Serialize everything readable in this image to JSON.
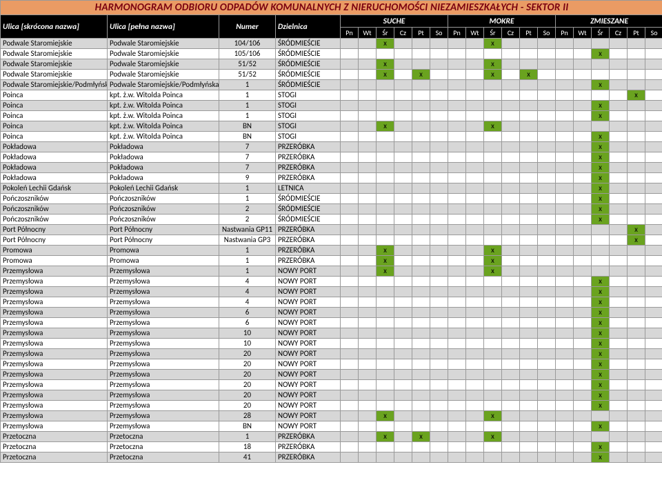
{
  "title": "HARMONOGRAM ODBIORU ODPADÓW KOMUNALNYCH Z NIERUCHOMOŚCI NIEZAMIESZKAŁYCH - SEKTOR II",
  "cols": {
    "street_short": "Ulica [skrócona nazwa]",
    "street_full": "Ulica [pełna nazwa]",
    "number": "Numer",
    "district": "Dzielnica",
    "groups": [
      "SUCHE",
      "MOKRE",
      "ZMIESZANE"
    ],
    "days": [
      "Pn",
      "Wt",
      "Śr",
      "Cz",
      "Pt",
      "So"
    ]
  },
  "colors": {
    "title_bg": "#ea9b64",
    "title_fg": "#7a0010",
    "hdr_bg": "#000000",
    "hdr_fg": "#ffffff",
    "row_alt_bg": "#d7d7d7",
    "row_bg": "#ffffff",
    "mark_bg": "#6aa31f",
    "border": "#999999"
  },
  "rows": [
    {
      "s": "Podwale Staromiejskie",
      "f": "Podwale Staromiejskie",
      "n": "104/106",
      "d": "ŚRÓDMIEŚCIE",
      "m": {
        "s": [
          2
        ],
        "m": [
          2
        ],
        "z": []
      }
    },
    {
      "s": "Podwale Staromiejskie",
      "f": "Podwale Staromiejskie",
      "n": "105/106",
      "d": "ŚRÓDMIEŚCIE",
      "m": {
        "s": [],
        "m": [],
        "z": [
          2
        ]
      }
    },
    {
      "s": "Podwale Staromiejskie",
      "f": "Podwale Staromiejskie",
      "n": "51/52",
      "d": "ŚRÓDMIEŚCIE",
      "m": {
        "s": [
          2
        ],
        "m": [
          2
        ],
        "z": []
      }
    },
    {
      "s": "Podwale Staromiejskie",
      "f": "Podwale Staromiejskie",
      "n": "51/52",
      "d": "ŚRÓDMIEŚCIE",
      "m": {
        "s": [
          2,
          4
        ],
        "m": [
          2,
          4
        ],
        "z": []
      }
    },
    {
      "s": "Podwale Staromiejskie/Podmłyńska",
      "f": "Podwale Staromiejskie/Podmłyńska",
      "n": "1",
      "d": "ŚRÓDMIEŚCIE",
      "m": {
        "s": [],
        "m": [],
        "z": [
          2
        ]
      }
    },
    {
      "s": "Poinca",
      "f": "kpt. ż.w. Witolda Poinca",
      "n": "1",
      "d": "STOGI",
      "m": {
        "s": [],
        "m": [],
        "z": [
          4
        ]
      }
    },
    {
      "s": "Poinca",
      "f": "kpt. ż.w. Witolda Poinca",
      "n": "1",
      "d": "STOGI",
      "m": {
        "s": [],
        "m": [],
        "z": [
          2
        ]
      }
    },
    {
      "s": "Poinca",
      "f": "kpt. ż.w. Witolda Poinca",
      "n": "1",
      "d": "STOGI",
      "m": {
        "s": [],
        "m": [],
        "z": [
          2
        ]
      }
    },
    {
      "s": "Poinca",
      "f": "kpt. ż.w. Witolda Poinca",
      "n": "BN",
      "d": "STOGI",
      "m": {
        "s": [
          2
        ],
        "m": [
          2
        ],
        "z": []
      }
    },
    {
      "s": "Poinca",
      "f": "kpt. ż.w. Witolda Poinca",
      "n": "BN",
      "d": "STOGI",
      "m": {
        "s": [],
        "m": [],
        "z": [
          2
        ]
      }
    },
    {
      "s": "Pokładowa",
      "f": "Pokładowa",
      "n": "7",
      "d": "PRZERÓBKA",
      "m": {
        "s": [],
        "m": [],
        "z": [
          2
        ]
      }
    },
    {
      "s": "Pokładowa",
      "f": "Pokładowa",
      "n": "7",
      "d": "PRZERÓBKA",
      "m": {
        "s": [],
        "m": [],
        "z": [
          2
        ]
      }
    },
    {
      "s": "Pokładowa",
      "f": "Pokładowa",
      "n": "7",
      "d": "PRZERÓBKA",
      "m": {
        "s": [],
        "m": [],
        "z": [
          2
        ]
      }
    },
    {
      "s": "Pokładowa",
      "f": "Pokładowa",
      "n": "9",
      "d": "PRZERÓBKA",
      "m": {
        "s": [],
        "m": [],
        "z": [
          2
        ]
      }
    },
    {
      "s": "Pokoleń Lechii Gdańsk",
      "f": "Pokoleń Lechii Gdańsk",
      "n": "1",
      "d": "LETNICA",
      "m": {
        "s": [],
        "m": [],
        "z": [
          2
        ]
      }
    },
    {
      "s": "Pończoszników",
      "f": "Pończoszników",
      "n": "1",
      "d": "ŚRÓDMIEŚCIE",
      "m": {
        "s": [],
        "m": [],
        "z": [
          2
        ]
      }
    },
    {
      "s": "Pończoszników",
      "f": "Pończoszników",
      "n": "2",
      "d": "ŚRÓDMIEŚCIE",
      "m": {
        "s": [],
        "m": [],
        "z": [
          2
        ]
      }
    },
    {
      "s": "Pończoszników",
      "f": "Pończoszników",
      "n": "2",
      "d": "ŚRÓDMIEŚCIE",
      "m": {
        "s": [],
        "m": [],
        "z": [
          2
        ]
      }
    },
    {
      "s": "Port Północny",
      "f": "Port Północny",
      "n": "Nastwania GP11",
      "d": "PRZERÓBKA",
      "m": {
        "s": [],
        "m": [],
        "z": [
          4
        ]
      }
    },
    {
      "s": "Port Północny",
      "f": "Port Północny",
      "n": "Nastwania GP3",
      "d": "PRZERÓBKA",
      "m": {
        "s": [],
        "m": [],
        "z": [
          4
        ]
      }
    },
    {
      "s": "Promowa",
      "f": "Promowa",
      "n": "1",
      "d": "PRZERÓBKA",
      "m": {
        "s": [
          2
        ],
        "m": [
          2
        ],
        "z": []
      }
    },
    {
      "s": "Promowa",
      "f": "Promowa",
      "n": "1",
      "d": "PRZERÓBKA",
      "m": {
        "s": [
          2
        ],
        "m": [
          2
        ],
        "z": []
      }
    },
    {
      "s": "Przemysłowa",
      "f": "Przemysłowa",
      "n": "1",
      "d": "NOWY PORT",
      "m": {
        "s": [
          2
        ],
        "m": [
          2
        ],
        "z": []
      }
    },
    {
      "s": "Przemysłowa",
      "f": "Przemysłowa",
      "n": "4",
      "d": "NOWY PORT",
      "m": {
        "s": [],
        "m": [],
        "z": [
          2
        ]
      }
    },
    {
      "s": "Przemysłowa",
      "f": "Przemysłowa",
      "n": "4",
      "d": "NOWY PORT",
      "m": {
        "s": [],
        "m": [],
        "z": [
          2
        ]
      }
    },
    {
      "s": "Przemysłowa",
      "f": "Przemysłowa",
      "n": "4",
      "d": "NOWY PORT",
      "m": {
        "s": [],
        "m": [],
        "z": [
          2
        ]
      }
    },
    {
      "s": "Przemysłowa",
      "f": "Przemysłowa",
      "n": "6",
      "d": "NOWY PORT",
      "m": {
        "s": [],
        "m": [],
        "z": [
          2
        ]
      }
    },
    {
      "s": "Przemysłowa",
      "f": "Przemysłowa",
      "n": "6",
      "d": "NOWY PORT",
      "m": {
        "s": [],
        "m": [],
        "z": [
          2
        ]
      }
    },
    {
      "s": "Przemysłowa",
      "f": "Przemysłowa",
      "n": "10",
      "d": "NOWY PORT",
      "m": {
        "s": [],
        "m": [],
        "z": [
          2
        ]
      }
    },
    {
      "s": "Przemysłowa",
      "f": "Przemysłowa",
      "n": "10",
      "d": "NOWY PORT",
      "m": {
        "s": [],
        "m": [],
        "z": [
          2
        ]
      }
    },
    {
      "s": "Przemysłowa",
      "f": "Przemysłowa",
      "n": "20",
      "d": "NOWY PORT",
      "m": {
        "s": [],
        "m": [],
        "z": [
          2
        ]
      }
    },
    {
      "s": "Przemysłowa",
      "f": "Przemysłowa",
      "n": "20",
      "d": "NOWY PORT",
      "m": {
        "s": [],
        "m": [],
        "z": [
          2
        ]
      }
    },
    {
      "s": "Przemysłowa",
      "f": "Przemysłowa",
      "n": "20",
      "d": "NOWY PORT",
      "m": {
        "s": [],
        "m": [],
        "z": [
          2
        ]
      }
    },
    {
      "s": "Przemysłowa",
      "f": "Przemysłowa",
      "n": "20",
      "d": "NOWY PORT",
      "m": {
        "s": [],
        "m": [],
        "z": [
          2
        ]
      }
    },
    {
      "s": "Przemysłowa",
      "f": "Przemysłowa",
      "n": "20",
      "d": "NOWY PORT",
      "m": {
        "s": [],
        "m": [],
        "z": [
          2
        ]
      }
    },
    {
      "s": "Przemysłowa",
      "f": "Przemysłowa",
      "n": "20",
      "d": "NOWY PORT",
      "m": {
        "s": [],
        "m": [],
        "z": [
          2
        ]
      }
    },
    {
      "s": "Przemysłowa",
      "f": "Przemysłowa",
      "n": "28",
      "d": "NOWY PORT",
      "m": {
        "s": [
          2
        ],
        "m": [
          2
        ],
        "z": []
      }
    },
    {
      "s": "Przemysłowa",
      "f": "Przemysłowa",
      "n": "BN",
      "d": "NOWY PORT",
      "m": {
        "s": [],
        "m": [],
        "z": [
          2
        ]
      }
    },
    {
      "s": "Przetoczna",
      "f": "Przetoczna",
      "n": "1",
      "d": "PRZERÓBKA",
      "m": {
        "s": [
          2,
          4
        ],
        "m": [
          2
        ],
        "z": []
      }
    },
    {
      "s": "Przetoczna",
      "f": "Przetoczna",
      "n": "18",
      "d": "PRZERÓBKA",
      "m": {
        "s": [],
        "m": [],
        "z": [
          2
        ]
      }
    },
    {
      "s": "Przetoczna",
      "f": "Przetoczna",
      "n": "41",
      "d": "PRZERÓBKA",
      "m": {
        "s": [],
        "m": [],
        "z": [
          2
        ]
      }
    }
  ]
}
